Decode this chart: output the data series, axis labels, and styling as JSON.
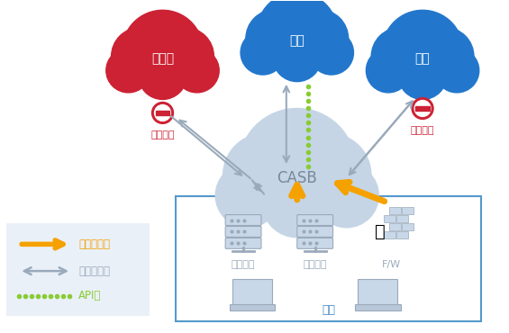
{
  "background_color": "#ffffff",
  "red_cloud_color": "#cc2233",
  "blue_cloud_color": "#2277cc",
  "gray_cloud_color": "#c5d5e5",
  "casb_text": "CASB",
  "cloud1_label": "未認可",
  "cloud2_label": "認可",
  "cloud3_label": "認可",
  "no_sign1_label": "利用不可",
  "no_sign3_label": "機密情報",
  "box_label": "社内",
  "proxy_label1": "プロキシ",
  "proxy_label2": "プロキシ",
  "fw_label": "F/W",
  "legend_log": "ログ分析型",
  "legend_proxy": "プロキシ型",
  "legend_api": "API型",
  "orange_color": "#f5a100",
  "gray_arrow_color": "#9aaabb",
  "green_dot_color": "#88cc33",
  "box_border_color": "#5599cc",
  "legend_bg_color": "#eaf0f8",
  "red_text_color": "#cc2233",
  "blue_text_color": "#4488cc",
  "orange_text_color": "#f5a100",
  "green_text_color": "#88cc33",
  "gray_text_color": "#9aaabb",
  "icon_color": "#9aaabb",
  "icon_face": "#c8d8e8"
}
